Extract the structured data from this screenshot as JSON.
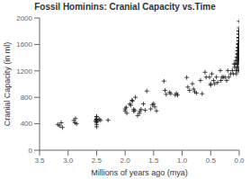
{
  "chart_data": {
    "type": "scatter",
    "title": "Fossil Hominins: Cranial Capacity vs.Time",
    "xlabel": "Millions of years ago (mya)",
    "ylabel": "Cranial Capacity (in ml)",
    "xlim": [
      3.5,
      0
    ],
    "ylim": [
      0,
      2000
    ],
    "xticks": [
      3.5,
      {
        "value": 3,
        "label": "3.0"
      },
      2.5,
      {
        "value": 2,
        "label": "2.0"
      },
      1.5,
      {
        "value": 1,
        "label": "1.0"
      },
      0.5,
      {
        "value": 0,
        "label": "0.0"
      }
    ],
    "yticks": [
      0,
      400,
      800,
      1200,
      1600,
      2000
    ],
    "color": "#1a1a1a",
    "marker": "+",
    "x": [
      3.18,
      3.15,
      3.12,
      3.1,
      2.9,
      2.88,
      2.87,
      2.85,
      2.52,
      2.51,
      2.5,
      2.5,
      2.5,
      2.5,
      2.5,
      2.5,
      2.5,
      2.48,
      2.45,
      2.43,
      2.3,
      2.0,
      2.0,
      1.98,
      1.97,
      1.92,
      1.9,
      1.88,
      1.87,
      1.85,
      1.85,
      1.83,
      1.82,
      1.78,
      1.75,
      1.74,
      1.72,
      1.68,
      1.65,
      1.62,
      1.55,
      1.52,
      1.5,
      1.48,
      1.45,
      1.32,
      1.3,
      1.28,
      1.22,
      1.2,
      1.12,
      1.1,
      1.08,
      0.92,
      0.9,
      0.87,
      0.82,
      0.8,
      0.78,
      0.75,
      0.68,
      0.65,
      0.6,
      0.58,
      0.52,
      0.5,
      0.5,
      0.48,
      0.45,
      0.43,
      0.4,
      0.38,
      0.33,
      0.32,
      0.3,
      0.28,
      0.25,
      0.22,
      0.2,
      0.18,
      0.15,
      0.12,
      0.1,
      0.09,
      0.08,
      0.07,
      0.06,
      0.055,
      0.05,
      0.045,
      0.04,
      0.038,
      0.035,
      0.033,
      0.032,
      0.03,
      0.028,
      0.027,
      0.026,
      0.025,
      0.024,
      0.023,
      0.022,
      0.02,
      0.018,
      0.017,
      0.016,
      0.015,
      0.014,
      0.013,
      0.012,
      0.011,
      0.01,
      0.009,
      0.009,
      0.008,
      0.008,
      0.007,
      0.007,
      0.007,
      0.007,
      0.006,
      0.006,
      0.006,
      0.006,
      0.005,
      0.005,
      0.005,
      0.005,
      0.004,
      0.004,
      0.004,
      0.004,
      0.003,
      0.003,
      0.003,
      0.003,
      0.002,
      0.002,
      0.002,
      0.002,
      0.0015,
      0.0015,
      0.0015,
      0.001,
      0.001,
      0.0005,
      0.0005,
      0.0005,
      0.0003,
      0.0003,
      0.0002,
      0.0001
    ],
    "values": [
      390,
      370,
      415,
      345,
      450,
      415,
      480,
      400,
      435,
      455,
      425,
      390,
      475,
      505,
      355,
      465,
      510,
      440,
      470,
      450,
      455,
      595,
      625,
      650,
      560,
      700,
      680,
      755,
      745,
      620,
      590,
      600,
      800,
      525,
      560,
      590,
      620,
      700,
      605,
      895,
      625,
      685,
      705,
      655,
      595,
      1045,
      905,
      845,
      875,
      855,
      835,
      860,
      835,
      1100,
      955,
      905,
      1005,
      925,
      885,
      865,
      1055,
      855,
      1180,
      1105,
      1105,
      985,
      1005,
      1155,
      1055,
      1005,
      1105,
      1025,
      1205,
      1055,
      1105,
      1105,
      1105,
      1055,
      1205,
      1105,
      1155,
      1205,
      1155,
      1305,
      1255,
      1305,
      1355,
      1205,
      1155,
      1405,
      1255,
      1305,
      1455,
      1355,
      1305,
      1205,
      1505,
      1405,
      1355,
      1555,
      1455,
      1355,
      1305,
      1505,
      1605,
      1255,
      1555,
      1405,
      1505,
      1605,
      1455,
      1355,
      1205,
      1655,
      1555,
      1505,
      1405,
      1705,
      1605,
      1505,
      1405,
      1755,
      1655,
      1555,
      1455,
      1805,
      1705,
      1605,
      1505,
      1755,
      1655,
      1555,
      1405,
      1705,
      1605,
      1505,
      1405,
      1650,
      1550,
      1450,
      1350,
      1600,
      1500,
      1400,
      1550,
      1450,
      1850,
      1700,
      1600,
      1800,
      1700,
      1800,
      1950
    ]
  }
}
